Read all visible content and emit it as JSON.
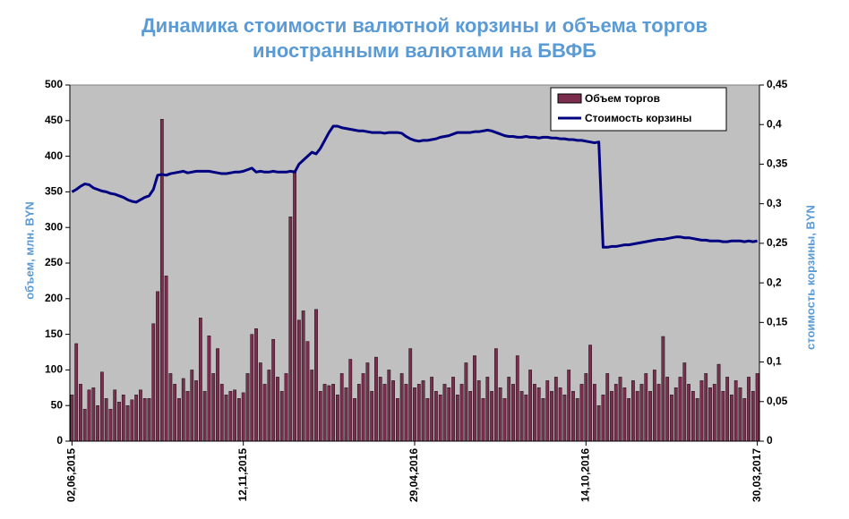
{
  "chart_data": {
    "type": "bar_line",
    "title": [
      "Динамика стоимости валютной корзины и объема торгов",
      "иностранными валютами на БВФБ"
    ],
    "ylabel": "объем, млн. BYN",
    "y2label": "стоимость  корзины, BYN",
    "categories": [
      "02,06,2015",
      null,
      null,
      null,
      null,
      null,
      null,
      null,
      null,
      null,
      null,
      null,
      null,
      null,
      null,
      null,
      null,
      null,
      null,
      null,
      null,
      null,
      null,
      null,
      null,
      null,
      null,
      null,
      null,
      null,
      null,
      null,
      null,
      null,
      null,
      null,
      null,
      null,
      null,
      null,
      "12,11,2015",
      null,
      null,
      null,
      null,
      null,
      null,
      null,
      null,
      null,
      null,
      null,
      null,
      null,
      null,
      null,
      null,
      null,
      null,
      null,
      null,
      null,
      null,
      null,
      null,
      null,
      null,
      null,
      null,
      null,
      null,
      null,
      null,
      null,
      null,
      null,
      null,
      null,
      null,
      null,
      "29,04,2016",
      null,
      null,
      null,
      null,
      null,
      null,
      null,
      null,
      null,
      null,
      null,
      null,
      null,
      null,
      null,
      null,
      null,
      null,
      null,
      null,
      null,
      null,
      null,
      null,
      null,
      null,
      null,
      null,
      null,
      null,
      null,
      null,
      null,
      null,
      null,
      null,
      null,
      null,
      null,
      "14,10,2016",
      null,
      null,
      null,
      null,
      null,
      null,
      null,
      null,
      null,
      null,
      null,
      null,
      null,
      null,
      null,
      null,
      null,
      null,
      null,
      null,
      null,
      null,
      null,
      null,
      null,
      null,
      null,
      null,
      null,
      null,
      null,
      null,
      null,
      null,
      null,
      null,
      null,
      null,
      null,
      "30,03,2017"
    ],
    "series": [
      {
        "name": "Объем торгов",
        "color": "#7b2d4e",
        "values": [
          65,
          137,
          80,
          45,
          72,
          75,
          50,
          97,
          60,
          45,
          72,
          55,
          65,
          50,
          58,
          65,
          72,
          60,
          60,
          165,
          210,
          452,
          232,
          95,
          80,
          60,
          88,
          70,
          100,
          85,
          173,
          70,
          148,
          95,
          130,
          80,
          65,
          70,
          72,
          60,
          68,
          95,
          150,
          158,
          110,
          80,
          100,
          143,
          90,
          70,
          95,
          315,
          380,
          170,
          183,
          140,
          100,
          185,
          70,
          80,
          78,
          80,
          65,
          95,
          75,
          115,
          60,
          80,
          95,
          110,
          70,
          118,
          90,
          80,
          100,
          85,
          60,
          95,
          80,
          130,
          75,
          80,
          85,
          60,
          90,
          70,
          65,
          80,
          75,
          90,
          65,
          80,
          110,
          70,
          120,
          85,
          60,
          90,
          70,
          130,
          75,
          60,
          90,
          80,
          120,
          70,
          65,
          100,
          80,
          75,
          60,
          85,
          70,
          90,
          75,
          65,
          100,
          70,
          60,
          80,
          95,
          135,
          80,
          50,
          65,
          95,
          70,
          80,
          90,
          75,
          60,
          85,
          70,
          80,
          95,
          70,
          100,
          80,
          147,
          90,
          65,
          75,
          90,
          110,
          80,
          70,
          60,
          85,
          95,
          75,
          80,
          108,
          70,
          90,
          65,
          85,
          75,
          60,
          90,
          70,
          95
        ]
      },
      {
        "name": "Стоимость  корзины",
        "color": "#000080",
        "axis": "y2",
        "values": [
          0.315,
          0.318,
          0.322,
          0.325,
          0.324,
          0.32,
          0.318,
          0.316,
          0.315,
          0.313,
          0.312,
          0.31,
          0.308,
          0.305,
          0.303,
          0.302,
          0.305,
          0.308,
          0.31,
          0.318,
          0.336,
          0.337,
          0.336,
          0.338,
          0.339,
          0.34,
          0.341,
          0.339,
          0.34,
          0.341,
          0.341,
          0.341,
          0.341,
          0.34,
          0.339,
          0.338,
          0.338,
          0.339,
          0.34,
          0.34,
          0.341,
          0.343,
          0.345,
          0.34,
          0.341,
          0.34,
          0.34,
          0.341,
          0.34,
          0.34,
          0.34,
          0.341,
          0.34,
          0.35,
          0.355,
          0.36,
          0.365,
          0.363,
          0.37,
          0.38,
          0.39,
          0.398,
          0.398,
          0.396,
          0.395,
          0.394,
          0.393,
          0.392,
          0.392,
          0.391,
          0.39,
          0.39,
          0.39,
          0.389,
          0.39,
          0.39,
          0.39,
          0.389,
          0.385,
          0.382,
          0.38,
          0.379,
          0.38,
          0.38,
          0.381,
          0.382,
          0.384,
          0.385,
          0.386,
          0.388,
          0.39,
          0.39,
          0.39,
          0.39,
          0.391,
          0.391,
          0.392,
          0.393,
          0.392,
          0.39,
          0.388,
          0.386,
          0.385,
          0.385,
          0.384,
          0.384,
          0.385,
          0.384,
          0.384,
          0.383,
          0.384,
          0.384,
          0.383,
          0.383,
          0.382,
          0.382,
          0.381,
          0.381,
          0.38,
          0.38,
          0.379,
          0.378,
          0.377,
          0.378,
          0.245,
          0.245,
          0.246,
          0.246,
          0.247,
          0.248,
          0.248,
          0.249,
          0.25,
          0.251,
          0.252,
          0.253,
          0.254,
          0.255,
          0.255,
          0.256,
          0.257,
          0.258,
          0.258,
          0.257,
          0.257,
          0.256,
          0.255,
          0.254,
          0.254,
          0.253,
          0.253,
          0.253,
          0.252,
          0.252,
          0.253,
          0.253,
          0.253,
          0.252,
          0.253,
          0.252,
          0.253
        ]
      }
    ],
    "ylim": [
      0,
      500
    ],
    "yticks": [
      0,
      50,
      100,
      150,
      200,
      250,
      300,
      350,
      400,
      450,
      500
    ],
    "y2lim": [
      0,
      0.45
    ],
    "y2ticks": [
      0,
      {
        "value": 0.05,
        "label": "0,05"
      },
      {
        "value": 0.1,
        "label": "0,1"
      },
      {
        "value": 0.15,
        "label": "0,15"
      },
      {
        "value": 0.2,
        "label": "0,2"
      },
      {
        "value": 0.25,
        "label": "0,25"
      },
      {
        "value": 0.3,
        "label": "0,3"
      },
      {
        "value": 0.35,
        "label": "0,35"
      },
      {
        "value": 0.4,
        "label": "0,4"
      },
      {
        "value": 0.45,
        "label": "0,45"
      }
    ],
    "legend": "upper right",
    "plot_background": "#c0c0c0"
  }
}
